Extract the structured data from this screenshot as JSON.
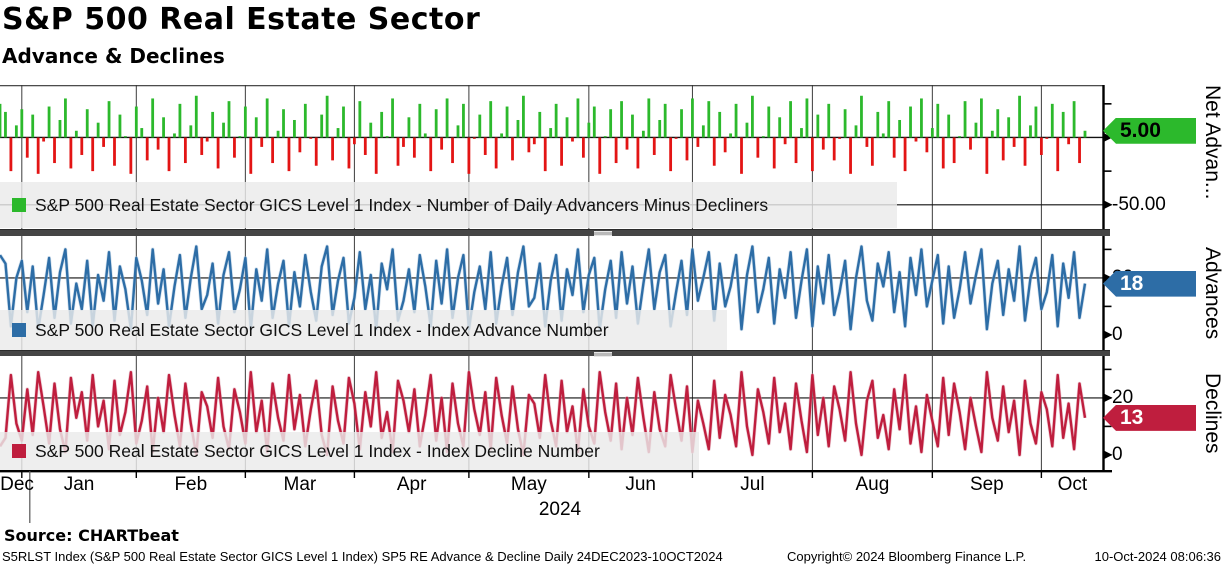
{
  "header": {
    "title": "S&P 500 Real Estate Sector",
    "subtitle": "Advance & Declines"
  },
  "panels": {
    "net": {
      "legend": "S&P 500 Real Estate Sector GICS Level 1 Index - Number of Daily Advancers Minus Decliners",
      "tag": "5.00",
      "tag_bg": "#2cb92c",
      "tag_text_color": "#000000",
      "side_label": "Net Advan...",
      "swatch_color": "#2cb92c"
    },
    "advances": {
      "legend": "S&P 500 Real Estate Sector GICS Level 1 Index - Index Advance Number",
      "tag": "18",
      "tag_bg": "#2d6da6",
      "tag_text_color": "#ffffff",
      "side_label": "Advances",
      "swatch_color": "#2d6da6"
    },
    "declines": {
      "legend": "S&P 500 Real Estate Sector GICS Level 1 Index - Index Decline Number",
      "tag": "13",
      "tag_bg": "#bf1e3e",
      "tag_text_color": "#ffffff",
      "side_label": "Declines",
      "swatch_color": "#bf1e3e"
    }
  },
  "x_axis": {
    "year_label": "2024"
  },
  "footer": {
    "source": "Source: CHARTbeat",
    "left": "S5RLST Index (S&P 500 Real Estate Sector GICS Level 1 Index) SP5 RE Advance & Decline  Daily 24DEC2023-10OCT2024",
    "copyright": "Copyright© 2024 Bloomberg Finance L.P.",
    "datetime": "10-Oct-2024 08:06:36"
  },
  "chart_data": {
    "x": {
      "start_date": "24DEC2023",
      "end_date": "10OCT2024",
      "n_points": 200,
      "months": [
        {
          "label": "Dec",
          "start": 0
        },
        {
          "label": "Jan",
          "start": 4
        },
        {
          "label": "Feb",
          "start": 25
        },
        {
          "label": "Mar",
          "start": 45
        },
        {
          "label": "Apr",
          "start": 65
        },
        {
          "label": "May",
          "start": 86
        },
        {
          "label": "Jun",
          "start": 108
        },
        {
          "label": "Jul",
          "start": 127
        },
        {
          "label": "Aug",
          "start": 149
        },
        {
          "label": "Sep",
          "start": 171
        },
        {
          "label": "Oct",
          "start": 191
        }
      ]
    },
    "series": [
      {
        "panel": "net",
        "type": "bar",
        "name": "Number of Daily Advancers Minus Decliners",
        "color_up": "#2cb92c",
        "color_down": "#e31414",
        "ylim": [
          -68,
          39
        ],
        "yticks": [
          25,
          0,
          -25,
          -50
        ],
        "labeled_ticks": [
          {
            "v": 0,
            "text": "0.00"
          },
          {
            "v": -50,
            "text": "-50.00"
          }
        ],
        "gridlines": [
          0,
          -50
        ],
        "last_value": 5,
        "values": [
          25,
          19,
          -25,
          9,
          21,
          -15,
          17,
          -27,
          -3,
          23,
          -19,
          13,
          29,
          -23,
          5,
          -13,
          21,
          -25,
          11,
          -7,
          27,
          -21,
          17,
          1,
          -27,
          23,
          7,
          -17,
          29,
          -9,
          15,
          -25,
          3,
          25,
          -19,
          9,
          31,
          -13,
          -3,
          19,
          -23,
          11,
          27,
          -15,
          1,
          23,
          -27,
          15,
          -7,
          29,
          -19,
          5,
          21,
          -25,
          13,
          -11,
          25,
          -1,
          -21,
          17,
          31,
          -17,
          7,
          23,
          -23,
          -5,
          27,
          -13,
          11,
          -27,
          19,
          1,
          29,
          -21,
          -7,
          15,
          -15,
          25,
          3,
          -25,
          21,
          -9,
          29,
          -19,
          9,
          25,
          -27,
          -1,
          17,
          -13,
          27,
          -23,
          3,
          23,
          -17,
          13,
          31,
          -11,
          -5,
          19,
          -25,
          7,
          25,
          -21,
          15,
          -3,
          29,
          -15,
          11,
          23,
          -27,
          1,
          21,
          -19,
          27,
          -9,
          17,
          -23,
          5,
          29,
          -13,
          13,
          25,
          -25,
          -1,
          21,
          -17,
          29,
          -7,
          9,
          27,
          -21,
          19,
          -11,
          3,
          25,
          -27,
          11,
          31,
          -15,
          1,
          23,
          -23,
          15,
          -5,
          27,
          -19,
          7,
          29,
          -25,
          17,
          -9,
          25,
          -17,
          -1,
          21,
          -27,
          9,
          31,
          -7,
          -21,
          19,
          3,
          27,
          -15,
          13,
          -25,
          23,
          -3,
          29,
          -11,
          7,
          25,
          -23,
          17,
          -19,
          1,
          27,
          -9,
          11,
          29,
          -27,
          5,
          21,
          -17,
          15,
          -7,
          31,
          -21,
          9,
          23,
          -13,
          -1,
          25,
          -25,
          19,
          -5,
          27,
          -19,
          5
        ]
      },
      {
        "panel": "advances",
        "type": "line",
        "name": "Index Advance Number",
        "color": "#2d6da6",
        "halo_color": "#9dbdda",
        "ylim": [
          -5.3,
          34.7
        ],
        "yticks": [
          30,
          20,
          10,
          0
        ],
        "labeled_ticks": [
          {
            "v": 20,
            "text": "20"
          },
          {
            "v": 0,
            "text": "0"
          }
        ],
        "gridlines": [
          20
        ],
        "last_value": 18,
        "values": [
          28,
          25,
          3,
          20,
          26,
          8,
          24,
          2,
          14,
          27,
          6,
          22,
          30,
          4,
          18,
          9,
          26,
          3,
          21,
          12,
          29,
          5,
          24,
          16,
          2,
          27,
          19,
          7,
          30,
          11,
          23,
          3,
          17,
          28,
          6,
          20,
          31,
          9,
          14,
          25,
          4,
          21,
          29,
          8,
          16,
          27,
          2,
          23,
          12,
          30,
          6,
          18,
          26,
          3,
          22,
          10,
          28,
          15,
          5,
          24,
          31,
          7,
          19,
          27,
          4,
          13,
          29,
          9,
          21,
          2,
          25,
          16,
          30,
          5,
          12,
          23,
          8,
          28,
          17,
          3,
          26,
          11,
          30,
          6,
          20,
          28,
          2,
          15,
          24,
          9,
          29,
          4,
          17,
          27,
          7,
          22,
          31,
          10,
          13,
          25,
          3,
          19,
          28,
          5,
          23,
          14,
          30,
          8,
          21,
          27,
          2,
          16,
          26,
          6,
          29,
          11,
          24,
          4,
          18,
          30,
          9,
          22,
          28,
          3,
          15,
          26,
          7,
          30,
          12,
          20,
          29,
          5,
          25,
          10,
          17,
          28,
          2,
          21,
          31,
          8,
          16,
          27,
          4,
          23,
          13,
          29,
          6,
          19,
          30,
          3,
          24,
          11,
          28,
          7,
          15,
          26,
          2,
          20,
          31,
          12,
          5,
          25,
          17,
          29,
          8,
          22,
          3,
          27,
          14,
          30,
          10,
          19,
          28,
          4,
          24,
          6,
          16,
          29,
          11,
          21,
          30,
          2,
          18,
          26,
          7,
          23,
          12,
          31,
          5,
          20,
          27,
          9,
          15,
          28,
          3,
          25,
          13,
          29,
          6,
          18
        ]
      },
      {
        "panel": "declines",
        "type": "line",
        "name": "Index Decline Number",
        "color": "#bf1e3e",
        "halo_color": "#d99aa8",
        "ylim": [
          -5.3,
          34.7
        ],
        "yticks": [
          30,
          20,
          10,
          0
        ],
        "labeled_ticks": [
          {
            "v": 20,
            "text": "20"
          },
          {
            "v": 0,
            "text": "0"
          }
        ],
        "gridlines": [
          20
        ],
        "last_value": 13,
        "values": [
          3,
          6,
          28,
          11,
          5,
          23,
          7,
          29,
          17,
          4,
          25,
          9,
          1,
          27,
          13,
          22,
          5,
          28,
          10,
          19,
          2,
          26,
          7,
          15,
          29,
          4,
          12,
          24,
          1,
          20,
          8,
          28,
          14,
          3,
          25,
          11,
          0,
          22,
          17,
          6,
          27,
          10,
          2,
          23,
          15,
          4,
          29,
          8,
          19,
          1,
          25,
          13,
          5,
          28,
          9,
          21,
          3,
          16,
          26,
          7,
          0,
          24,
          12,
          4,
          27,
          18,
          2,
          22,
          10,
          29,
          6,
          15,
          1,
          26,
          19,
          8,
          23,
          3,
          14,
          28,
          5,
          20,
          1,
          25,
          11,
          3,
          29,
          16,
          7,
          22,
          2,
          27,
          14,
          4,
          24,
          9,
          0,
          21,
          18,
          6,
          28,
          12,
          3,
          26,
          8,
          17,
          1,
          23,
          10,
          4,
          29,
          15,
          5,
          25,
          2,
          20,
          7,
          27,
          13,
          1,
          22,
          9,
          3,
          28,
          16,
          5,
          24,
          1,
          19,
          11,
          2,
          26,
          6,
          21,
          14,
          3,
          29,
          10,
          0,
          23,
          15,
          4,
          27,
          8,
          18,
          2,
          25,
          12,
          1,
          28,
          7,
          20,
          3,
          24,
          16,
          5,
          29,
          11,
          0,
          19,
          26,
          6,
          14,
          2,
          23,
          9,
          28,
          4,
          17,
          1,
          21,
          12,
          3,
          27,
          7,
          25,
          15,
          2,
          20,
          10,
          1,
          29,
          13,
          5,
          24,
          8,
          19,
          0,
          26,
          11,
          4,
          22,
          16,
          3,
          28,
          6,
          18,
          2,
          25,
          13
        ]
      }
    ]
  }
}
